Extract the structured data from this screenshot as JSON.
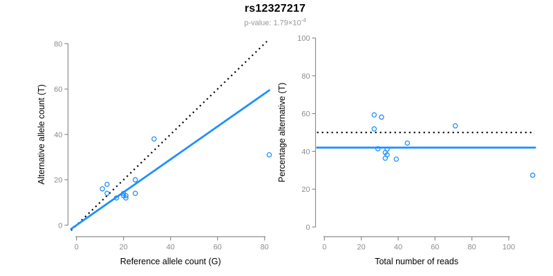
{
  "header": {
    "title": "rs12327217",
    "pvalue_prefix": "p-value: ",
    "pvalue_mantissa_base": "1.79×10",
    "pvalue_exponent": "-4"
  },
  "colors": {
    "points": "#1E90FF",
    "fit_line": "#1E90FF",
    "expected_line": "#000000",
    "axis": "#8C8C8C",
    "tick_label": "#8C8C8C",
    "axis_title": "#000000",
    "title": "#000000",
    "subtitle": "#969696",
    "background": "#FFFFFF"
  },
  "chart_data": [
    {
      "type": "scatter",
      "name": "allele-counts-scatter",
      "xlabel": "Reference allele count (G)",
      "ylabel": "Alternative allele count (T)",
      "xlim": [
        0,
        82
      ],
      "ylim": [
        0,
        82
      ],
      "xticks": [
        0,
        20,
        40,
        60,
        80
      ],
      "yticks": [
        0,
        20,
        40,
        60,
        80
      ],
      "grid": false,
      "legend": "none",
      "points": [
        [
          11,
          16
        ],
        [
          13,
          18
        ],
        [
          13,
          14
        ],
        [
          17,
          12
        ],
        [
          20,
          14
        ],
        [
          20,
          13
        ],
        [
          21,
          13
        ],
        [
          21,
          12
        ],
        [
          25,
          20
        ],
        [
          25,
          14
        ],
        [
          33,
          38
        ],
        [
          82,
          31
        ]
      ],
      "lines": [
        {
          "label": "expected-1-to-1",
          "pattern": "dotted",
          "color": "#000000",
          "slope": 1,
          "intercept": 0,
          "x_range": [
            -2.3,
            81
          ]
        },
        {
          "label": "fitted-42pct-alternative",
          "pattern": "solid",
          "color": "#1E90FF",
          "slope": 0.725,
          "intercept": 0,
          "x_range": [
            -2.3,
            82
          ]
        }
      ]
    },
    {
      "type": "scatter",
      "name": "percentage-vs-reads-scatter",
      "xlabel": "Total number of reads",
      "ylabel": "Percentage alternative (T)",
      "xlim": [
        0,
        114
      ],
      "ylim": [
        0,
        100
      ],
      "xticks": [
        0,
        20,
        40,
        60,
        80,
        100
      ],
      "yticks": [
        0,
        20,
        40,
        60,
        80,
        100
      ],
      "grid": false,
      "legend": "none",
      "points": [
        [
          27,
          59.3
        ],
        [
          31,
          58.1
        ],
        [
          27,
          51.9
        ],
        [
          29,
          41.4
        ],
        [
          34,
          41.2
        ],
        [
          33,
          39.4
        ],
        [
          34,
          38.2
        ],
        [
          33,
          36.4
        ],
        [
          45,
          44.4
        ],
        [
          39,
          35.9
        ],
        [
          71,
          53.5
        ],
        [
          113,
          27.4
        ]
      ],
      "lines": [
        {
          "label": "expected-50pct",
          "pattern": "dotted",
          "color": "#000000",
          "y": 50,
          "x_range": [
            -4,
            114
          ]
        },
        {
          "label": "fitted-42pct",
          "pattern": "solid",
          "color": "#1E90FF",
          "y": 42,
          "x_range": [
            -4,
            114.3
          ]
        }
      ]
    }
  ]
}
